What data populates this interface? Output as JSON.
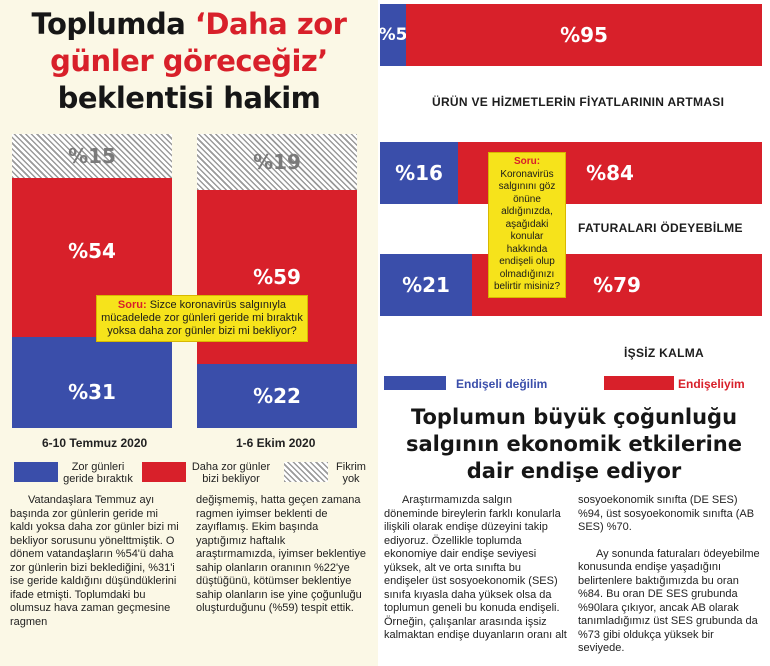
{
  "left": {
    "title_line1_a": "Toplumda ",
    "title_line1_b": "‘Daha zor",
    "title_line2": "günler göreceğiz’",
    "title_line3": "beklentisi hakim",
    "bars": [
      {
        "date": "6-10 Temmuz 2020",
        "no_opinion": "%15",
        "harder": "%54",
        "behind": "%31"
      },
      {
        "date": "1-6 Ekim 2020",
        "no_opinion": "%19",
        "harder": "%59",
        "behind": "%22"
      }
    ],
    "question_label": "Soru:",
    "question_text": " Sizce koronavirüs salgınıyla mücadelede zor günleri geride mi bıraktık yoksa daha zor günler bizi mi bekliyor?",
    "legend": {
      "behind": "Zor günleri geride bıraktık",
      "harder": "Daha zor günler bizi bekliyor",
      "no_opinion": "Fikrim yok"
    },
    "body_col1": "Vatandaşlara Temmuz ayı başında zor günlerin geride mi kaldı yoksa daha zor günler bizi mi bekliyor sorusunu yönelttmiştik. O dönem vatandaşların %54'ü daha zor günlerin bizi beklediğini, %31'i ise geride kaldığını düşündüklerini ifade etmişti. Toplumdaki bu olumsuz hava zaman geçmesine ragmen",
    "body_col2": "değişmemiş, hatta geçen zamana ragmen iyimser beklenti de zayıflamış. Ekim başında yaptığımız haftalık araştırmamızda, iyimser beklentiye sahip olanların oranının %22'ye düştüğünü, kötümser beklentiye sahip olanların ise yine çoğunluğu oluşturduğunu (%59) tespit ettik."
  },
  "right": {
    "rows": [
      {
        "not_worried": "%5",
        "worried": "%95",
        "label": "ÜRÜN VE HİZMETLERİN FİYATLARININ ARTMASI"
      },
      {
        "not_worried": "%16",
        "worried": "%84",
        "label": "FATURALARI ÖDEYEBİLME"
      },
      {
        "not_worried": "%21",
        "worried": "%79",
        "label": "İŞSİZ KALMA"
      }
    ],
    "question_label": "Soru:",
    "question_text": " Koronavirüs salgınını göz önüne aldığınızda, aşağıdaki konular hakkında endişeli olup olmadığınızı belirtir misiniz?",
    "legend": {
      "not_worried": "Endişeli değilim",
      "worried": "Endişeliyim"
    },
    "title_line1": "Toplumun büyük çoğunluğu",
    "title_line2": "salgının ekonomik etkilerine",
    "title_line3": "dair endişe ediyor",
    "body_col1": "Araştırmamızda salgın döneminde bireylerin farklı konularla ilişkili olarak endişe düzeyini takip ediyoruz. Özellikle toplumda ekonomiye dair endişe seviyesi yüksek, alt ve orta sınıfta bu endişeler üst sosyoekonomik (SES) sınıfa kıyasla daha yüksek olsa da toplumun geneli bu konuda endişeli. Örneğin, çalışanlar arasında işsiz kalmaktan endişe duyanların oranı alt",
    "body_col2a": "sosyoekonomik sınıfta (DE SES) %94, üst sosyoekonomik sınıfta (AB SES) %70.",
    "body_col2b": "Ay sonunda faturaları ödeyebilme konusunda endişe yaşadığını belirtenlere baktığımızda bu oran %84. Bu oran DE SES grubunda %90lara çıkıyor, ancak AB olarak tanımladığımız üst SES grubunda da %73 gibi oldukça yüksek bir seviyede."
  },
  "colors": {
    "red": "#d8202a",
    "blue": "#3a4eaa",
    "yellow": "#f6e31b",
    "cream": "#fbf8e6"
  }
}
